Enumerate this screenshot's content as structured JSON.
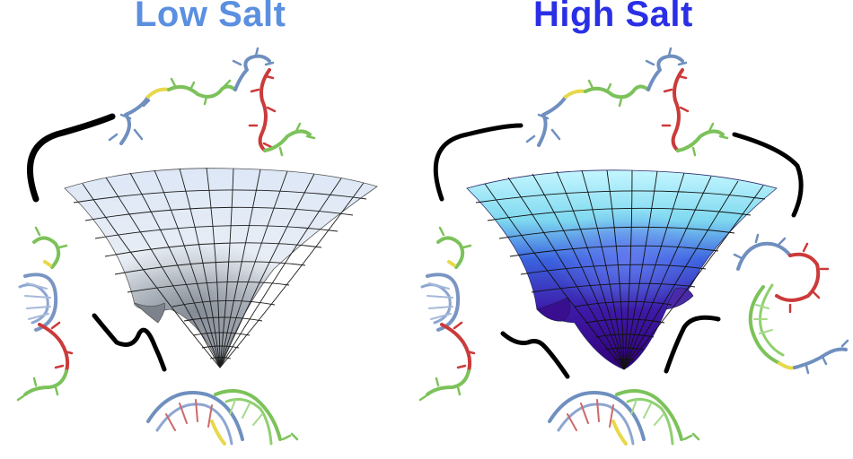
{
  "panels": {
    "low": {
      "title": "Low Salt",
      "title_color": "#5b8fe0"
    },
    "high": {
      "title": "High Salt",
      "title_color": "#2a2fe6"
    }
  },
  "colors": {
    "strand_blue": "#6f8fbf",
    "strand_red": "#cc3a3a",
    "strand_green": "#7cc25a",
    "strand_yellow": "#e8d84a",
    "arrow": "#000000",
    "grid": "#1a1a1a",
    "low_surface_top": "#dfe8f5",
    "low_surface_bottom": "#8e96a3",
    "high_surface_top": "#bff4ff",
    "high_surface_mid": "#3f64e0",
    "high_surface_bottom": "#3a008a"
  }
}
